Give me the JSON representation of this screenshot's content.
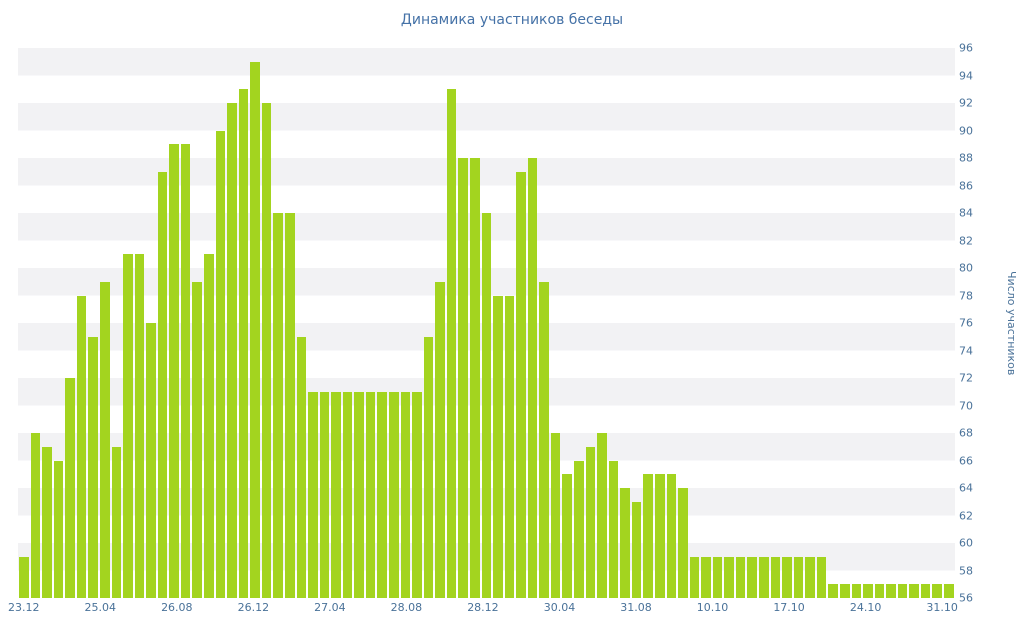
{
  "title": "Динамика участников беседы",
  "chart_data": {
    "type": "bar",
    "title": "Динамика участников беседы",
    "xlabel": "",
    "ylabel": "Число участников",
    "ylim": [
      56,
      96
    ],
    "ytick_step": 2,
    "grid": "alternating horizontal bands, no gridlines",
    "legend": "none",
    "x_tick_labels": [
      "23.12",
      "25.04",
      "26.08",
      "26.12",
      "27.04",
      "28.08",
      "28.12",
      "30.04",
      "31.08",
      "10.10",
      "17.10",
      "24.10",
      "31.10"
    ],
    "values": [
      59,
      68,
      67,
      66,
      72,
      78,
      75,
      79,
      67,
      81,
      81,
      76,
      87,
      89,
      89,
      79,
      81,
      90,
      92,
      93,
      95,
      92,
      84,
      84,
      75,
      71,
      71,
      71,
      71,
      71,
      71,
      71,
      71,
      71,
      71,
      75,
      79,
      93,
      88,
      88,
      84,
      78,
      78,
      87,
      88,
      79,
      68,
      65,
      66,
      67,
      68,
      66,
      64,
      63,
      65,
      65,
      65,
      64,
      59,
      59,
      59,
      59,
      59,
      59,
      59,
      59,
      59,
      59,
      59,
      59,
      57,
      57,
      57,
      57,
      57,
      57,
      57,
      57,
      57,
      57,
      57
    ],
    "colors": {
      "bar": "#a3d41f",
      "band": "#f2f2f4",
      "text": "#4a7299",
      "title": "#4572a7"
    }
  }
}
